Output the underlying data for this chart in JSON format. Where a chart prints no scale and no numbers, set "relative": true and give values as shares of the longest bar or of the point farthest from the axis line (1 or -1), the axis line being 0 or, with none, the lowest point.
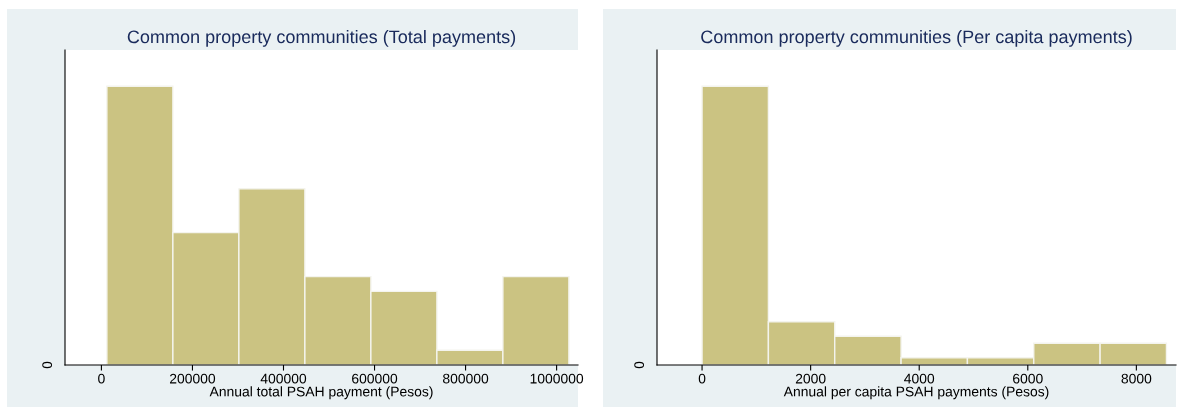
{
  "chart_data": [
    {
      "type": "bar",
      "title": "Common property communities (Total payments)",
      "xlabel": "Annual total PSAH payment (Pesos)",
      "relative": true,
      "color": "#cbc382",
      "x": [
        84500,
        229500,
        374500,
        519500,
        664500,
        809500,
        954500
      ],
      "values": [
        1,
        0.475,
        0.632,
        0.317,
        0.264,
        0.053,
        0.317
      ],
      "xlim": [
        -80000,
        1047000
      ],
      "xticks": [
        0,
        200000,
        400000,
        600000,
        800000,
        1000000
      ],
      "annotations": [
        "0"
      ]
    },
    {
      "type": "bar",
      "title": "Common property communities (Per capita payments)",
      "xlabel": "Annual per capita PSAH payments (Pesos)",
      "relative": true,
      "color": "#cbc382",
      "x": [
        611,
        1833,
        3055,
        4277,
        5499,
        6721,
        7943
      ],
      "values": [
        1,
        0.155,
        0.103,
        0.026,
        0.026,
        0.078,
        0.078
      ],
      "xlim": [
        -830,
        8730
      ],
      "xticks": [
        0,
        2000,
        4000,
        6000,
        8000
      ],
      "annotations": [
        "0"
      ]
    }
  ]
}
